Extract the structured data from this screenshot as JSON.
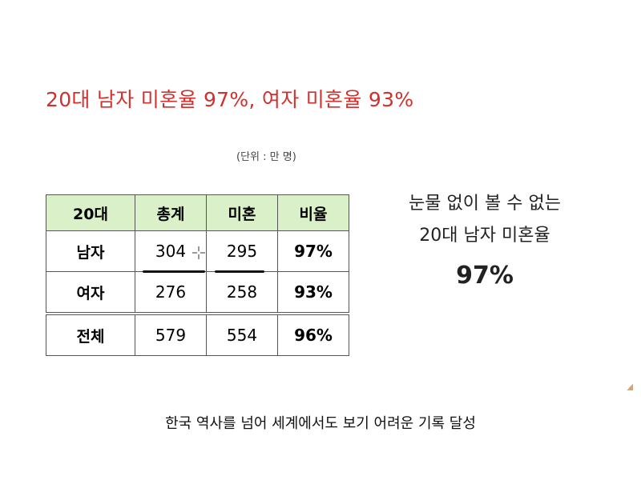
{
  "headline": "20대 남자 미혼율 97%, 여자 미혼율 93%",
  "unit_note": "(단위 : 만 명)",
  "table": {
    "headers": [
      "20대",
      "총계",
      "미혼",
      "비율"
    ],
    "rows": [
      {
        "label": "남자",
        "total": "304",
        "unmarried": "295",
        "ratio": "97%"
      },
      {
        "label": "여자",
        "total": "276",
        "unmarried": "258",
        "ratio": "93%"
      },
      {
        "label": "전체",
        "total": "579",
        "unmarried": "554",
        "ratio": "96%"
      }
    ]
  },
  "side_text": {
    "line1": "눈물 없이 볼 수 없는",
    "line2": "20대 남자 미혼율",
    "figure": "97%"
  },
  "caption": "한국 역사를 넘어 세계에서도 보기 어려운 기록 달성",
  "colors": {
    "headline": "#d0312d",
    "header_bg": "#d9f0c9"
  }
}
